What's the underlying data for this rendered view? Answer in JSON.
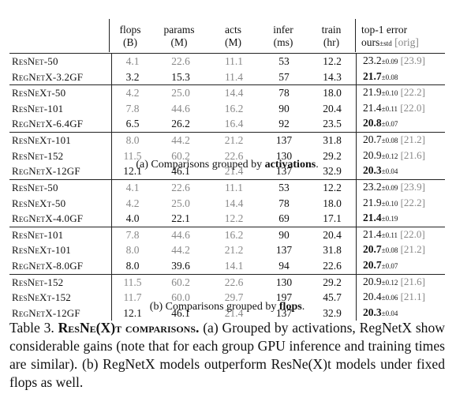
{
  "header": {
    "cols": [
      {
        "top": "flops",
        "unit": "(B)"
      },
      {
        "top": "params",
        "unit": "(M)"
      },
      {
        "top": "acts",
        "unit": "(M)"
      },
      {
        "top": "infer",
        "unit": "(ms)"
      },
      {
        "top": "train",
        "unit": "(hr)"
      }
    ],
    "err_top": "top-1 error",
    "err_ours": "ours",
    "err_pm": "±std",
    "err_orig": "[orig]"
  },
  "groupA": [
    [
      {
        "name": "ResNet-50",
        "flops": "4.1",
        "params": "22.6",
        "acts": "11.1",
        "infer": "53",
        "train": "12.2",
        "err": "23.2",
        "std": "±0.09",
        "orig": "[23.9]",
        "bold": false
      },
      {
        "name": "RegNetX-3.2GF",
        "flops": "3.2",
        "params": "15.3",
        "acts": "11.4",
        "infer": "57",
        "train": "14.3",
        "err": "21.7",
        "std": "±0.08",
        "orig": "",
        "bold": true
      }
    ],
    [
      {
        "name": "ResNeXt-50",
        "flops": "4.2",
        "params": "25.0",
        "acts": "14.4",
        "infer": "78",
        "train": "18.0",
        "err": "21.9",
        "std": "±0.10",
        "orig": "[22.2]",
        "bold": false
      },
      {
        "name": "ResNet-101",
        "flops": "7.8",
        "params": "44.6",
        "acts": "16.2",
        "infer": "90",
        "train": "20.4",
        "err": "21.4",
        "std": "±0.11",
        "orig": "[22.0]",
        "bold": false
      },
      {
        "name": "RegNetX-6.4GF",
        "flops": "6.5",
        "params": "26.2",
        "acts": "16.4",
        "infer": "92",
        "train": "23.5",
        "err": "20.8",
        "std": "±0.07",
        "orig": "",
        "bold": true
      }
    ],
    [
      {
        "name": "ResNeXt-101",
        "flops": "8.0",
        "params": "44.2",
        "acts": "21.2",
        "infer": "137",
        "train": "31.8",
        "err": "20.7",
        "std": "±0.08",
        "orig": "[21.2]",
        "bold": false
      },
      {
        "name": "ResNet-152",
        "flops": "11.5",
        "params": "60.2",
        "acts": "22.6",
        "infer": "130",
        "train": "29.2",
        "err": "20.9",
        "std": "±0.12",
        "orig": "[21.6]",
        "bold": false
      },
      {
        "name": "RegNetX-12GF",
        "flops": "12.1",
        "params": "46.1",
        "acts": "21.4",
        "infer": "137",
        "train": "32.9",
        "err": "20.3",
        "std": "±0.04",
        "orig": "",
        "bold": true
      }
    ]
  ],
  "captionA_pre": "(a) Comparisons grouped by ",
  "captionA_bold": "activations",
  "captionA_post": ".",
  "groupB": [
    [
      {
        "name": "ResNet-50",
        "flops": "4.1",
        "params": "22.6",
        "acts": "11.1",
        "infer": "53",
        "train": "12.2",
        "err": "23.2",
        "std": "±0.09",
        "orig": "[23.9]",
        "bold": false
      },
      {
        "name": "ResNeXt-50",
        "flops": "4.2",
        "params": "25.0",
        "acts": "14.4",
        "infer": "78",
        "train": "18.0",
        "err": "21.9",
        "std": "±0.10",
        "orig": "[22.2]",
        "bold": false
      },
      {
        "name": "RegNetX-4.0GF",
        "flops": "4.0",
        "params": "22.1",
        "acts": "12.2",
        "infer": "69",
        "train": "17.1",
        "err": "21.4",
        "std": "±0.19",
        "orig": "",
        "bold": true
      }
    ],
    [
      {
        "name": "ResNet-101",
        "flops": "7.8",
        "params": "44.6",
        "acts": "16.2",
        "infer": "90",
        "train": "20.4",
        "err": "21.4",
        "std": "±0.11",
        "orig": "[22.0]",
        "bold": false
      },
      {
        "name": "ResNeXt-101",
        "flops": "8.0",
        "params": "44.2",
        "acts": "21.2",
        "infer": "137",
        "train": "31.8",
        "err": "20.7",
        "std": "±0.08",
        "orig": "[21.2]",
        "bold": true
      },
      {
        "name": "RegNetX-8.0GF",
        "flops": "8.0",
        "params": "39.6",
        "acts": "14.1",
        "infer": "94",
        "train": "22.6",
        "err": "20.7",
        "std": "±0.07",
        "orig": "",
        "bold": true
      }
    ],
    [
      {
        "name": "ResNet-152",
        "flops": "11.5",
        "params": "60.2",
        "acts": "22.6",
        "infer": "130",
        "train": "29.2",
        "err": "20.9",
        "std": "±0.12",
        "orig": "[21.6]",
        "bold": false
      },
      {
        "name": "ResNeXt-152",
        "flops": "11.7",
        "params": "60.0",
        "acts": "29.7",
        "infer": "197",
        "train": "45.7",
        "err": "20.4",
        "std": "±0.06",
        "orig": "[21.1]",
        "bold": false
      },
      {
        "name": "RegNetX-12GF",
        "flops": "12.1",
        "params": "46.1",
        "acts": "21.4",
        "infer": "137",
        "train": "32.9",
        "err": "20.3",
        "std": "±0.04",
        "orig": "",
        "bold": true
      }
    ]
  ],
  "captionB_pre": "(b) Comparisons grouped by ",
  "captionB_bold": "flops",
  "captionB_post": ".",
  "table_caption": {
    "label": "Table 3.",
    "title": "ResNe(X)t comparisons.",
    "text": "(a) Grouped by activations, RegNetX show considerable gains (note that for each group GPU inference and training times are similar). (b) RegNetX models outperform ResNe(X)t models under fixed flops as well."
  }
}
